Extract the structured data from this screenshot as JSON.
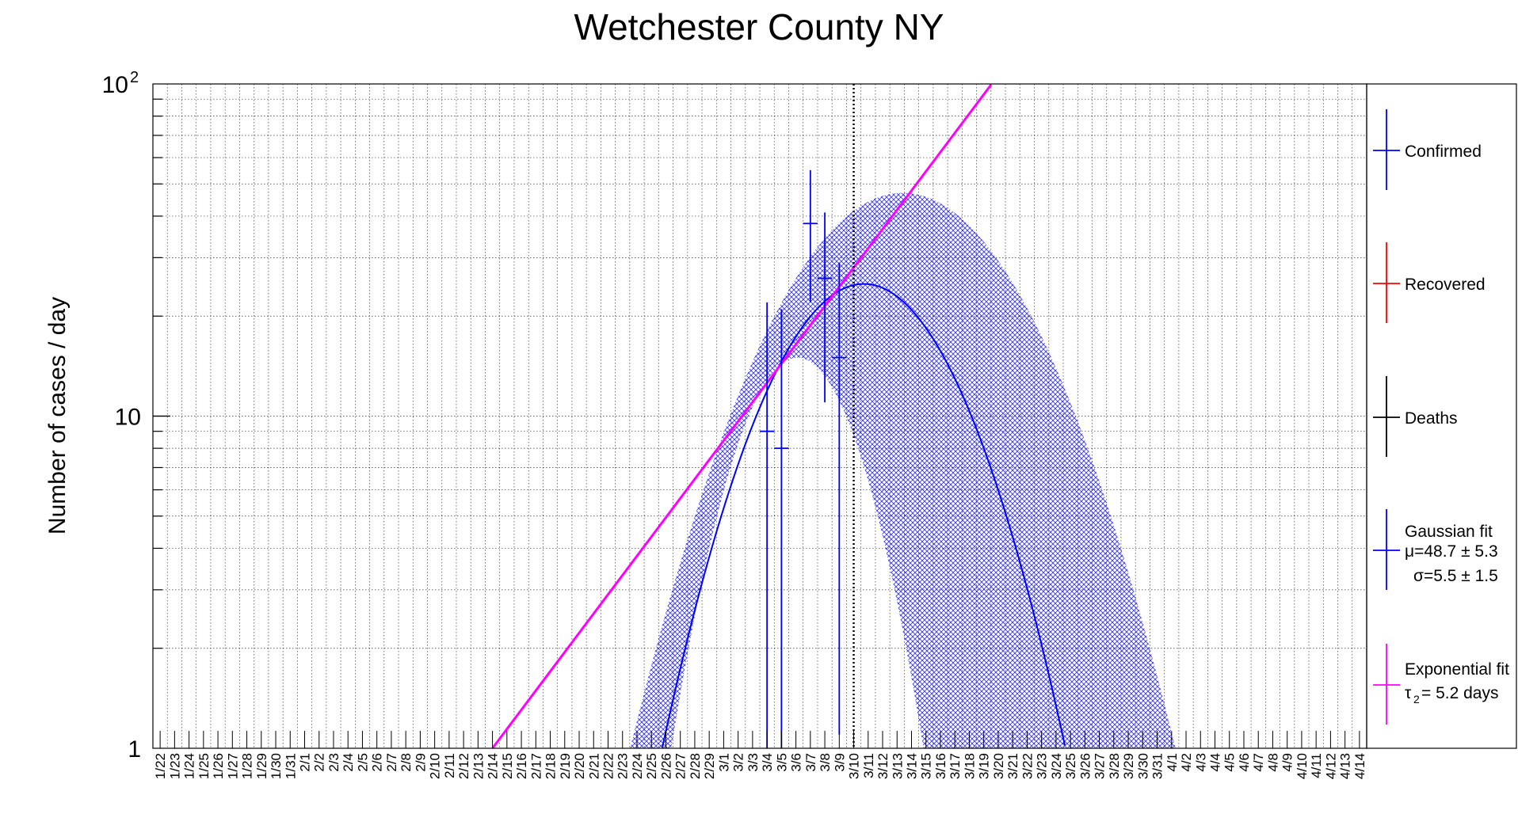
{
  "chart_data": {
    "type": "scatter",
    "title": "Wetchester County NY",
    "ylabel": "Number of cases / day",
    "xlabel": "",
    "y_scale": "log",
    "ylim": [
      1,
      100
    ],
    "y_ticks": [
      {
        "value": 1,
        "label": "1"
      },
      {
        "value": 10,
        "label": "10"
      },
      {
        "value": 100,
        "label": "10",
        "exponent": "2"
      }
    ],
    "grid": true,
    "x_categories": [
      "1/22",
      "1/23",
      "1/24",
      "1/25",
      "1/26",
      "1/27",
      "1/28",
      "1/29",
      "1/30",
      "1/31",
      "2/1",
      "2/2",
      "2/3",
      "2/4",
      "2/5",
      "2/6",
      "2/7",
      "2/8",
      "2/9",
      "2/10",
      "2/11",
      "2/12",
      "2/13",
      "2/14",
      "2/15",
      "2/16",
      "2/17",
      "2/18",
      "2/19",
      "2/20",
      "2/21",
      "2/22",
      "2/23",
      "2/24",
      "2/25",
      "2/26",
      "2/27",
      "2/28",
      "2/29",
      "3/1",
      "3/2",
      "3/3",
      "3/4",
      "3/5",
      "3/6",
      "3/7",
      "3/8",
      "3/9",
      "3/10",
      "3/11",
      "3/12",
      "3/13",
      "3/14",
      "3/15",
      "3/16",
      "3/17",
      "3/18",
      "3/19",
      "3/20",
      "3/21",
      "3/22",
      "3/23",
      "3/24",
      "3/25",
      "3/26",
      "3/27",
      "3/28",
      "3/29",
      "3/30",
      "3/31",
      "4/1",
      "4/2",
      "4/3",
      "4/4",
      "4/5",
      "4/6",
      "4/7",
      "4/8",
      "4/9",
      "4/10",
      "4/11",
      "4/12",
      "4/13",
      "4/14"
    ],
    "vertical_marker": "3/10",
    "series": [
      {
        "name": "Confirmed",
        "color": "#0000ff",
        "points": [
          {
            "x": "3/4",
            "y": 9,
            "y_low": 1,
            "y_high": 22
          },
          {
            "x": "3/5",
            "y": 8,
            "y_low": 1,
            "y_high": 21
          },
          {
            "x": "3/7",
            "y": 38,
            "y_low": 22,
            "y_high": 55
          },
          {
            "x": "3/8",
            "y": 26,
            "y_low": 11,
            "y_high": 41
          },
          {
            "x": "3/9",
            "y": 15,
            "y_low": 1.1,
            "y_high": 29
          }
        ]
      },
      {
        "name": "Recovered",
        "color": "#ff0000",
        "points": []
      },
      {
        "name": "Deaths",
        "color": "#000000",
        "points": []
      }
    ],
    "fits": [
      {
        "name": "Gaussian fit",
        "type": "gaussian",
        "color": "#0000ff",
        "mu": 48.7,
        "mu_err": 5.3,
        "sigma": 5.5,
        "sigma_err": 1.5,
        "amplitude": 25,
        "band": {
          "center_lower": 44.1,
          "sigma_lower": 3.75,
          "amp_lower": 15,
          "center_upper": 51.4,
          "sigma_upper": 6.8,
          "amp_upper": 47
        }
      },
      {
        "name": "Exponential fit",
        "type": "exponential",
        "color": "#ff00ff",
        "doubling_time_days": 5.2,
        "x_start": "2/14",
        "y_start": 1
      }
    ],
    "legend": {
      "placement": "right",
      "entries": [
        {
          "lines": [
            "Confirmed"
          ],
          "color": "#0000ff"
        },
        {
          "lines": [
            "Recovered"
          ],
          "color": "#ff0000"
        },
        {
          "lines": [
            "Deaths"
          ],
          "color": "#000000"
        },
        {
          "lines": [
            "Gaussian fit",
            "μ=48.7 ± 5.3",
            "σ=5.5 ± 1.5"
          ],
          "color": "#0000ff"
        },
        {
          "lines": [
            "Exponential fit",
            "τ",
            "2",
            " = 5.2 days"
          ],
          "color": "#ff00ff"
        }
      ]
    }
  }
}
